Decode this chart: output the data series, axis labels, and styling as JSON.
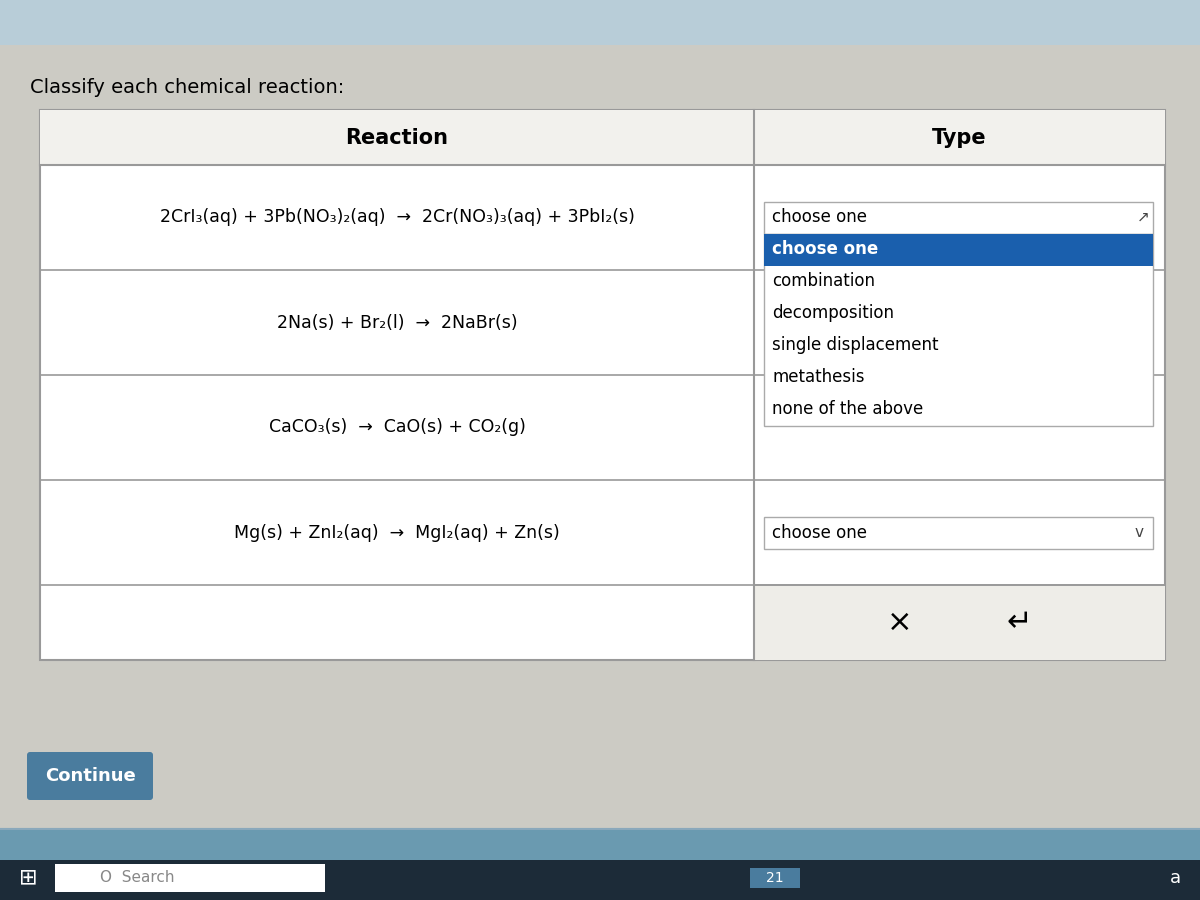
{
  "title": "Classify each chemical reaction:",
  "bg_color": "#cccbc4",
  "table_bg": "white",
  "border_color": "#999999",
  "reactions": [
    "2CrI₃(aq) + 3Pb(NO₃)₂(aq)  →  2Cr(NO₃)₃(aq) + 3PbI₂(s)",
    "2Na(s) + Br₂(l)  →  2NaBr(s)",
    "CaCO₃(s)  →  CaO(s) + CO₂(g)",
    "Mg(s) + ZnI₂(aq)  →  MgI₂(aq) + Zn(s)"
  ],
  "col_reaction_label": "Reaction",
  "col_type_label": "Type",
  "dropdown_row1_text": "choose one",
  "dropdown_expanded_items": [
    "choose one",
    "combination",
    "decomposition",
    "single displacement",
    "metathesis",
    "none of the above"
  ],
  "dropdown_highlighted": "choose one",
  "dropdown_row4_text": "choose one",
  "button_continue_text": "Continue",
  "button_continue_bg": "#4a7c9e",
  "button_continue_text_color": "#ffffff",
  "x_symbol": "×",
  "undo_symbol": "↵",
  "taskbar_bg": "#4a7c9e",
  "taskbar_bottom_bg": "#1e2a38",
  "top_bar_color": "#b0c8d8"
}
